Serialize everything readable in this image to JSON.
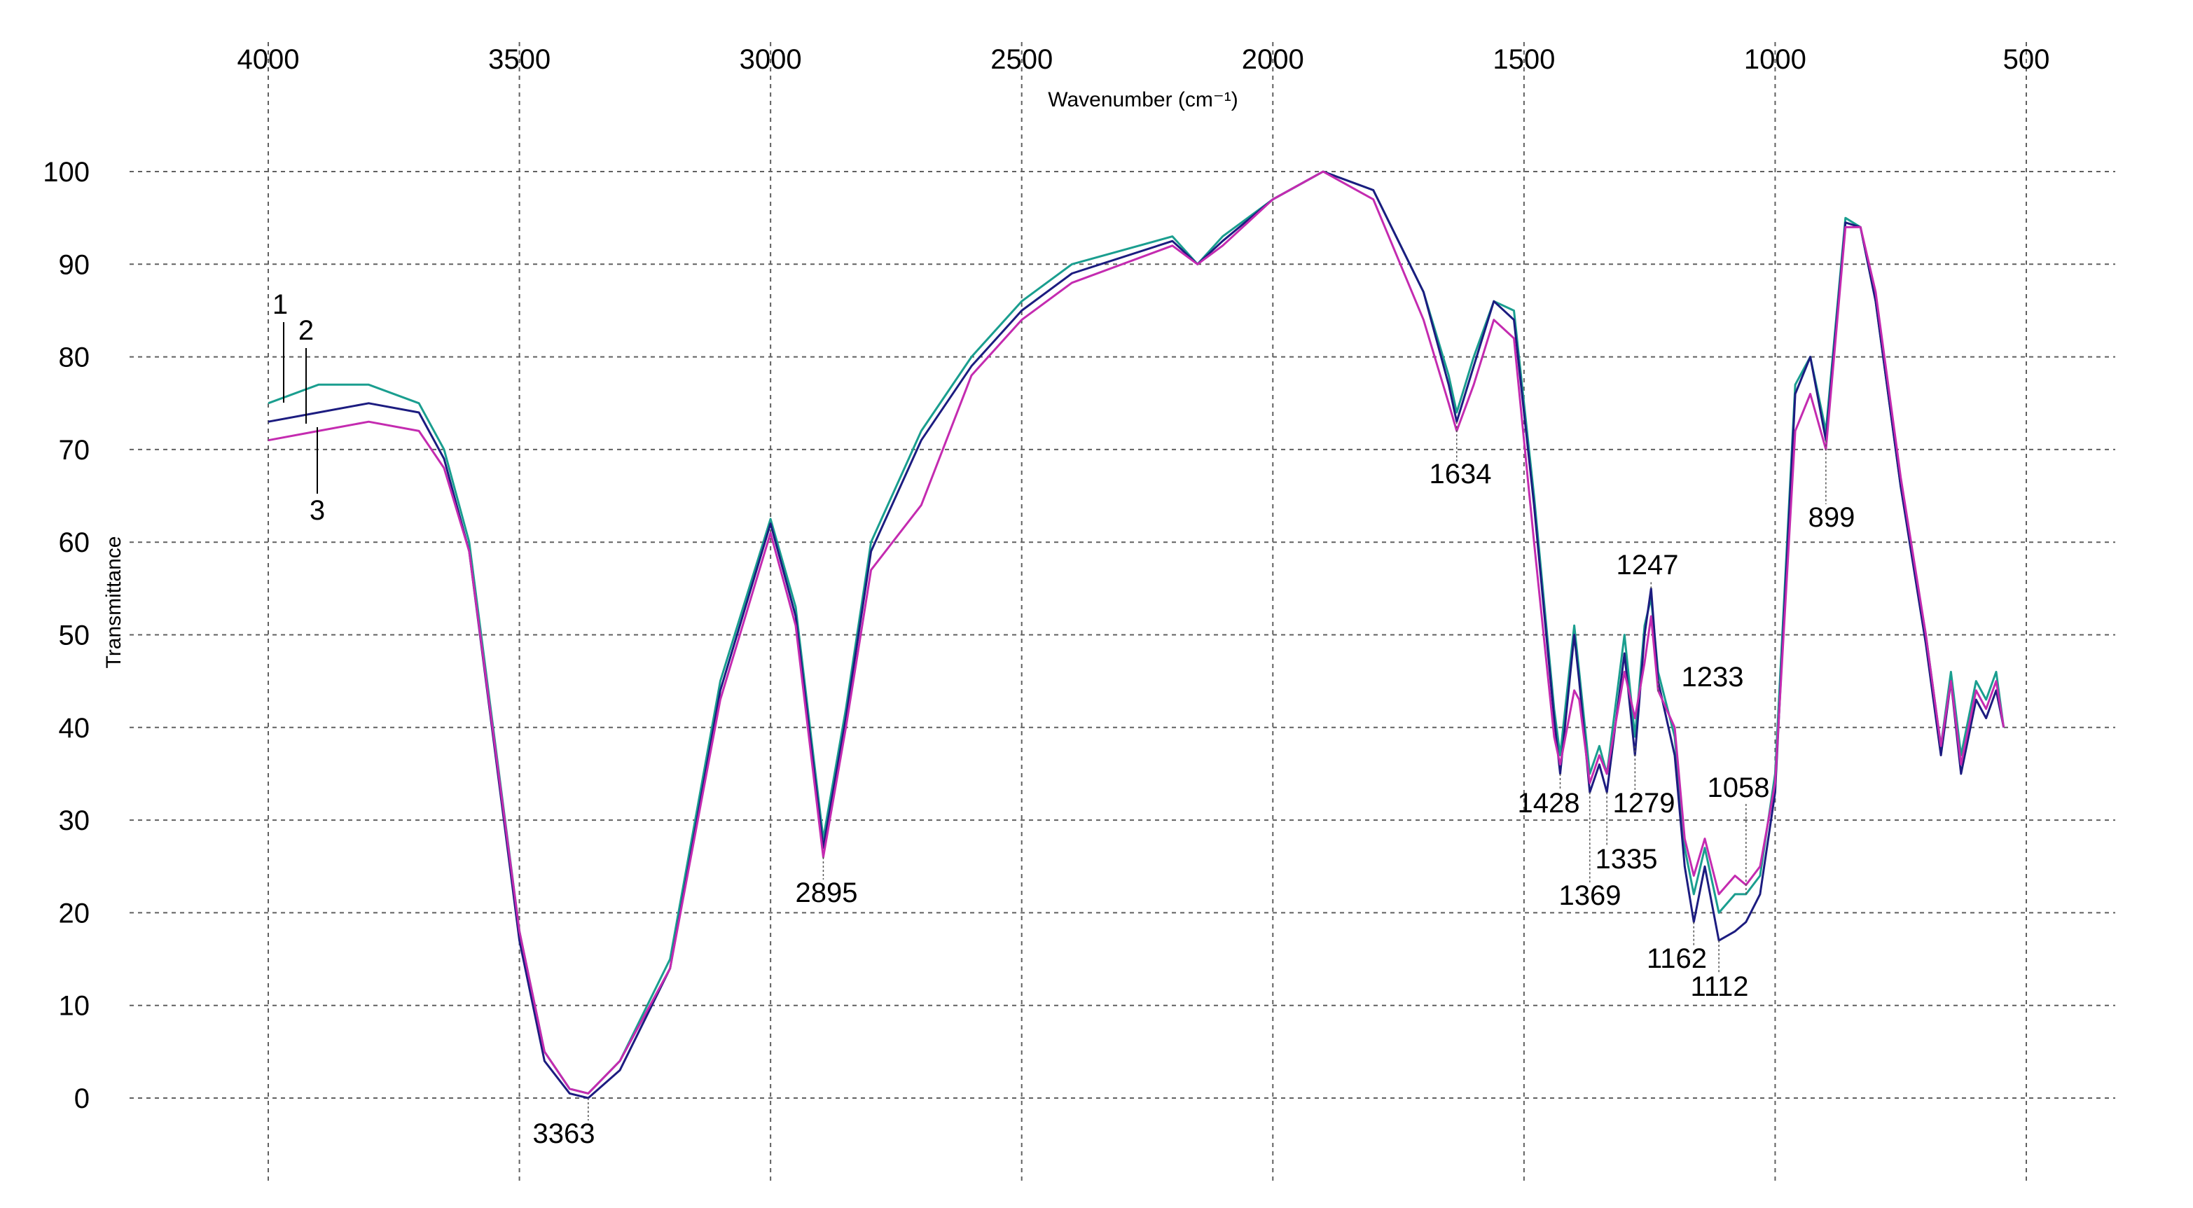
{
  "chart_data": {
    "type": "line",
    "title": "",
    "xlabel": "Wavenumber (cm⁻¹)",
    "ylabel": "Transmittance",
    "xlim": [
      4000,
      500
    ],
    "ylim": [
      0,
      100
    ],
    "x_reversed": true,
    "grid": true,
    "x_ticks": [
      4000,
      3500,
      3000,
      2500,
      2000,
      1500,
      1000,
      500
    ],
    "y_ticks": [
      0,
      10,
      20,
      30,
      40,
      50,
      60,
      70,
      80,
      90,
      100
    ],
    "series": [
      {
        "name": "1",
        "color": "#1a9e8f",
        "x": [
          4000,
          3900,
          3800,
          3700,
          3650,
          3600,
          3500,
          3450,
          3400,
          3363,
          3300,
          3200,
          3100,
          3000,
          2950,
          2895,
          2850,
          2800,
          2700,
          2600,
          2500,
          2400,
          2200,
          2150,
          2100,
          2000,
          1900,
          1800,
          1700,
          1650,
          1634,
          1600,
          1560,
          1520,
          1480,
          1440,
          1428,
          1400,
          1390,
          1369,
          1350,
          1335,
          1300,
          1279,
          1260,
          1247,
          1233,
          1200,
          1180,
          1162,
          1140,
          1112,
          1080,
          1058,
          1030,
          1000,
          960,
          930,
          899,
          860,
          830,
          800,
          750,
          700,
          670,
          650,
          630,
          600,
          580,
          560,
          545
        ],
        "y": [
          75,
          77,
          77,
          75,
          70,
          60,
          18,
          5,
          1,
          0.5,
          4,
          15,
          45,
          62.5,
          53,
          28,
          42,
          60,
          72,
          80,
          86,
          90,
          93,
          90,
          93,
          97,
          100,
          98,
          87,
          78,
          74,
          80,
          86,
          85,
          65,
          42,
          37,
          51,
          46,
          35,
          38,
          35,
          50,
          39,
          51,
          54,
          46,
          39,
          27,
          22,
          27,
          20,
          22,
          22,
          24,
          35,
          77,
          80,
          72,
          95,
          94,
          86,
          66,
          50,
          38,
          46,
          37,
          45,
          43,
          46,
          40
        ]
      },
      {
        "name": "2",
        "color": "#1c1c80",
        "x": [
          4000,
          3900,
          3800,
          3700,
          3650,
          3600,
          3500,
          3450,
          3400,
          3363,
          3300,
          3200,
          3100,
          3000,
          2950,
          2895,
          2850,
          2800,
          2700,
          2600,
          2500,
          2400,
          2200,
          2150,
          2100,
          2000,
          1900,
          1800,
          1700,
          1650,
          1634,
          1600,
          1560,
          1520,
          1480,
          1440,
          1428,
          1400,
          1390,
          1369,
          1350,
          1335,
          1300,
          1279,
          1260,
          1247,
          1233,
          1200,
          1180,
          1162,
          1140,
          1112,
          1080,
          1058,
          1030,
          1000,
          960,
          930,
          899,
          860,
          830,
          800,
          750,
          700,
          670,
          650,
          630,
          600,
          580,
          560,
          545
        ],
        "y": [
          73,
          74,
          75,
          74,
          69,
          59,
          17,
          4,
          0.5,
          0,
          3,
          14,
          44,
          62,
          52,
          27,
          41,
          59,
          71,
          79,
          85,
          89,
          92.5,
          90,
          92.5,
          97,
          100,
          98,
          87,
          77,
          73,
          79,
          86,
          84,
          64,
          41,
          35,
          50,
          45,
          33,
          36,
          33,
          48,
          37,
          50,
          55,
          45,
          37,
          25,
          19,
          25,
          17,
          18,
          19,
          22,
          33,
          76,
          80,
          71,
          94.5,
          94,
          86,
          66,
          49,
          37,
          45,
          35,
          43,
          41,
          44,
          40
        ]
      },
      {
        "name": "3",
        "color": "#c42bb0",
        "x": [
          4000,
          3900,
          3800,
          3700,
          3650,
          3600,
          3500,
          3450,
          3400,
          3363,
          3300,
          3200,
          3100,
          3000,
          2950,
          2895,
          2850,
          2800,
          2700,
          2600,
          2500,
          2400,
          2200,
          2150,
          2100,
          2000,
          1900,
          1800,
          1700,
          1650,
          1634,
          1600,
          1560,
          1520,
          1480,
          1440,
          1428,
          1400,
          1390,
          1369,
          1350,
          1335,
          1300,
          1279,
          1260,
          1247,
          1233,
          1200,
          1180,
          1162,
          1140,
          1112,
          1080,
          1058,
          1030,
          1000,
          960,
          930,
          899,
          860,
          830,
          800,
          750,
          700,
          670,
          650,
          630,
          600,
          580,
          560,
          545
        ],
        "y": [
          71,
          72,
          73,
          72,
          68,
          59,
          18,
          5,
          1,
          0.5,
          4,
          14,
          43,
          61,
          51,
          26,
          40,
          57,
          64,
          78,
          84,
          88,
          92,
          90,
          92,
          97,
          100,
          97,
          84,
          75,
          72,
          77,
          84,
          82,
          60,
          39,
          36,
          44,
          43,
          34,
          37,
          35,
          46,
          41,
          47,
          52,
          44,
          40,
          28,
          24,
          28,
          22,
          24,
          23,
          25,
          34,
          72,
          76,
          70,
          94,
          94,
          87,
          67,
          50,
          38,
          45,
          36,
          44,
          42,
          45,
          40
        ]
      }
    ],
    "peak_annotations": [
      "3363",
      "2895",
      "1634",
      "1428",
      "1369",
      "1335",
      "1279",
      "1247",
      "1233",
      "1162",
      "1112",
      "1058",
      "899"
    ],
    "series_number_labels": [
      "1",
      "2",
      "3"
    ]
  }
}
